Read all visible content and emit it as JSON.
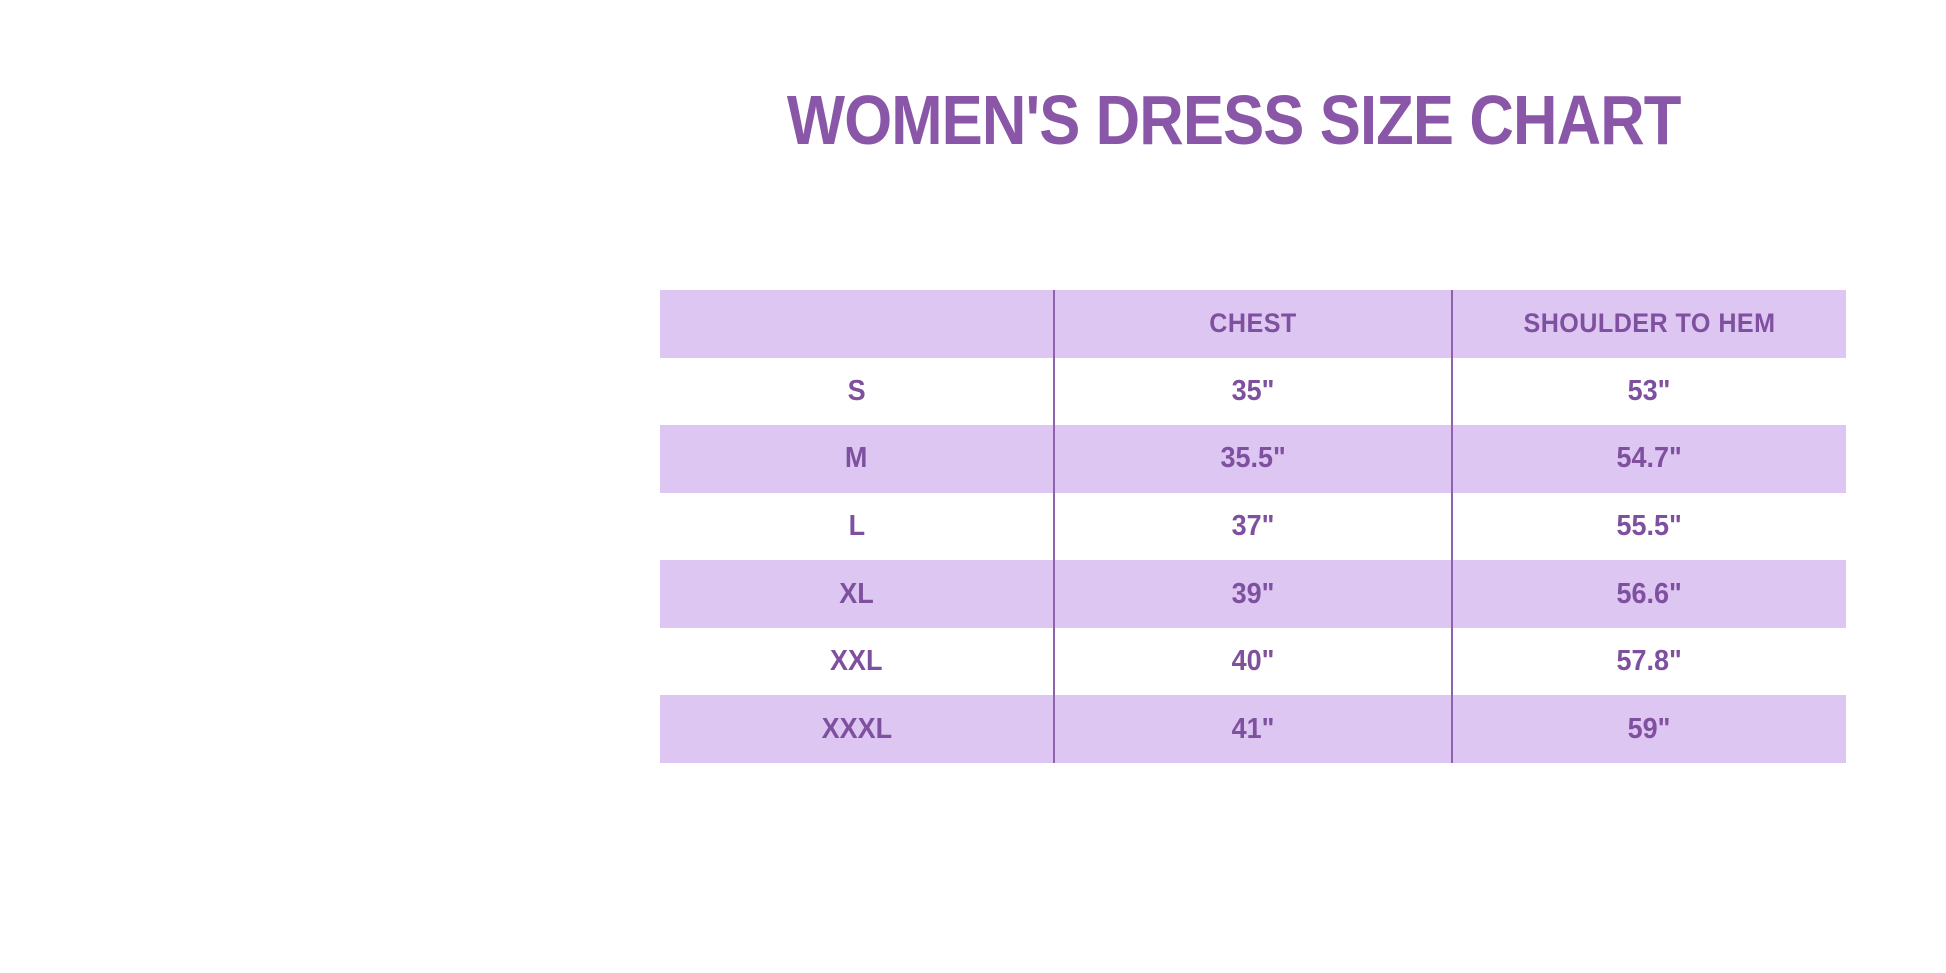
{
  "colors": {
    "title_text": "#8a56a8",
    "table_text": "#7e509f",
    "row_highlight": "#ddc6f1",
    "column_divider": "#8d63ad",
    "page_background": "#ffffff"
  },
  "chart_data": {
    "type": "table",
    "title": "WOMEN'S DRESS SIZE CHART",
    "columns": [
      "",
      "CHEST",
      "SHOULDER TO HEM"
    ],
    "rows": [
      {
        "size": "S",
        "chest": "35\"",
        "shoulder_to_hem": "53\""
      },
      {
        "size": "M",
        "chest": "35.5\"",
        "shoulder_to_hem": "54.7\""
      },
      {
        "size": "L",
        "chest": "37\"",
        "shoulder_to_hem": "55.5\""
      },
      {
        "size": "XL",
        "chest": "39\"",
        "shoulder_to_hem": "56.6\""
      },
      {
        "size": "XXL",
        "chest": "40\"",
        "shoulder_to_hem": "57.8\""
      },
      {
        "size": "XXXL",
        "chest": "41\"",
        "shoulder_to_hem": "59\""
      }
    ],
    "layout": {
      "row_shading": "alternating",
      "shaded_rows": [
        "header",
        "M",
        "XL",
        "XXXL"
      ],
      "vertical_dividers": 2,
      "horizontal_borders": "none"
    }
  }
}
